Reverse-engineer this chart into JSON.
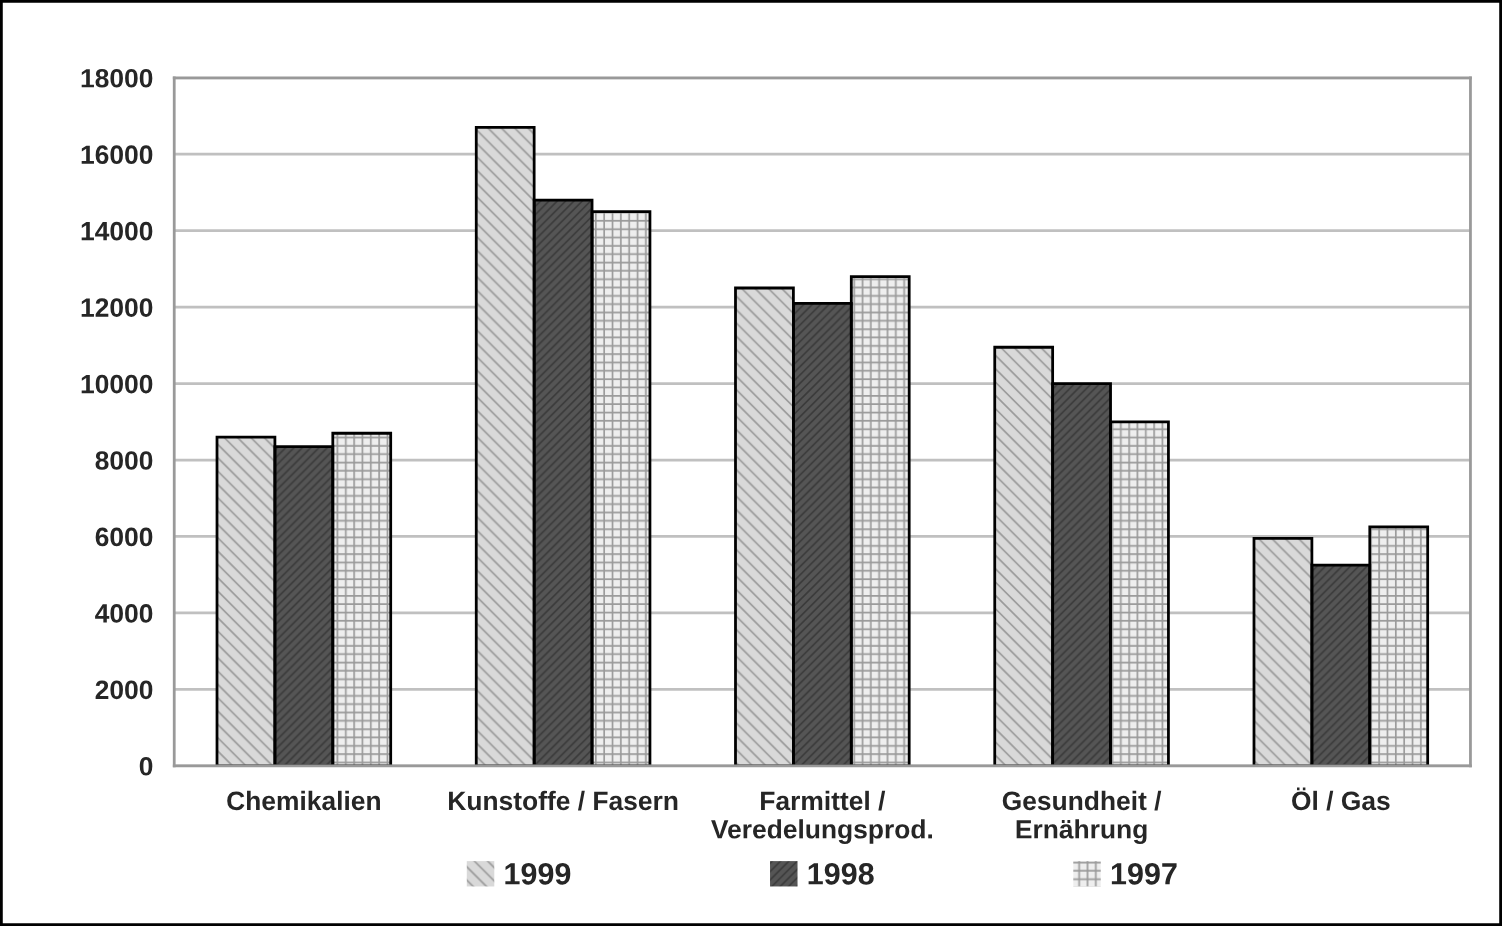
{
  "chart_data": {
    "type": "bar",
    "categories": [
      "Chemikalien",
      "Kunstoffe / Fasern",
      "Farmittel /\nVeredelungsprod.",
      "Gesundheit /\nErnährung",
      "Öl / Gas"
    ],
    "series": [
      {
        "name": "1999",
        "color": "#d9d9d9",
        "values": [
          8600,
          16700,
          12500,
          10950,
          5950
        ]
      },
      {
        "name": "1998",
        "color": "#555555",
        "values": [
          8350,
          14800,
          12100,
          10000,
          5250
        ]
      },
      {
        "name": "1997",
        "color": "#eeeeee",
        "values": [
          8700,
          14500,
          12800,
          9000,
          6250
        ]
      }
    ],
    "ylim": [
      0,
      18000
    ],
    "yticks": [
      0,
      2000,
      4000,
      6000,
      8000,
      10000,
      12000,
      14000,
      16000,
      18000
    ],
    "grid": "y",
    "legend": "bottom"
  }
}
